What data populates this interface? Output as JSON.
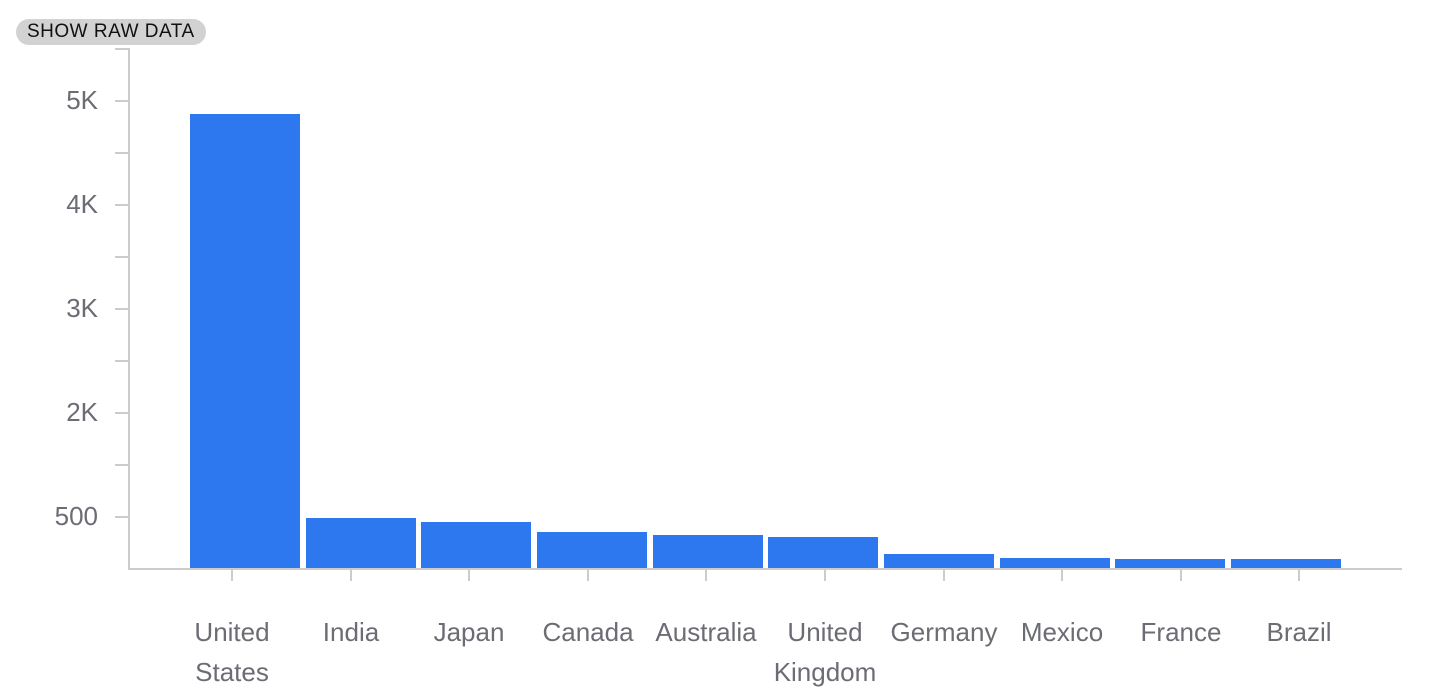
{
  "toolbar": {
    "show_raw_data_label": "SHOW RAW DATA"
  },
  "chart_data": {
    "type": "bar",
    "title": "",
    "xlabel": "",
    "ylabel": "",
    "categories": [
      "United States",
      "India",
      "Japan",
      "Canada",
      "Australia",
      "United Kingdom",
      "Germany",
      "Mexico",
      "France",
      "Brazil"
    ],
    "values": [
      4870,
      480,
      440,
      345,
      315,
      295,
      135,
      95,
      85,
      90
    ],
    "y_tick_labels": [
      {
        "label": "500",
        "value": 500
      },
      {
        "label": "2K",
        "value": 2000
      },
      {
        "label": "3K",
        "value": 3000
      },
      {
        "label": "4K",
        "value": 4000
      },
      {
        "label": "5K",
        "value": 5000
      }
    ],
    "ylim": [
      0,
      5500
    ],
    "grid": false,
    "legend": false,
    "colors": {
      "bar": "#2d78ef",
      "axis": "#cccccc",
      "tick_label": "#6c6c75",
      "button_bg": "#d2d2d2",
      "button_text": "#111111"
    }
  }
}
